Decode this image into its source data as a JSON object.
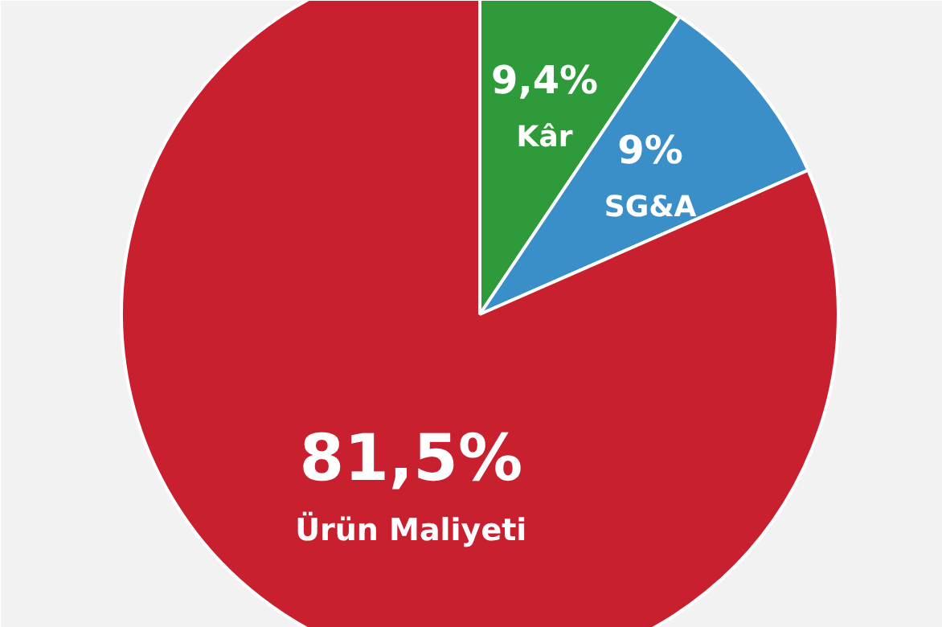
{
  "chart_data": {
    "type": "pie",
    "categories": [
      "Kâr",
      "SG&A",
      "Ürün Maliyeti"
    ],
    "values": [
      9.4,
      9,
      81.5
    ],
    "colors": [
      "#2e9a3a",
      "#3a8fc8",
      "#c8202f"
    ],
    "value_labels": [
      "9,4%",
      "9%",
      "81,5%"
    ]
  }
}
